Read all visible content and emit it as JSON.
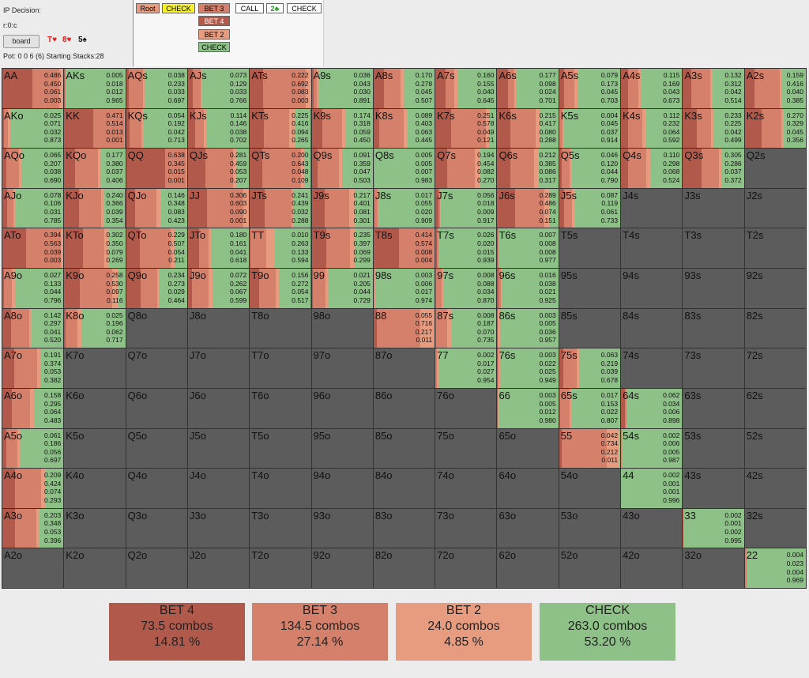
{
  "header": {
    "title": "IP Decision:",
    "node_path": "r:0:c",
    "board_button": "board",
    "cards": [
      {
        "label": "T♥",
        "color": "#e02020"
      },
      {
        "label": "8♥",
        "color": "#e02020"
      },
      {
        "label": "5♠",
        "color": "#111111"
      }
    ],
    "pot_info": "Pot: 0 0 6 (6) Starting Stacks:28"
  },
  "tree": {
    "root": "Root",
    "check1": "CHECK",
    "bet3": "BET 3",
    "bet4": "BET 4",
    "bet2": "BET 2",
    "check2": "CHECK",
    "call": "CALL",
    "card": "2♣",
    "check3": "CHECK"
  },
  "colors": {
    "bet4": "#b15a4b",
    "bet3": "#d5806b",
    "bet2": "#e89c7f",
    "check": "#8dc187",
    "empty": "#5c5c5c",
    "highlight": "#f6f12b"
  },
  "grid": {
    "ranks": [
      "A",
      "K",
      "Q",
      "J",
      "T",
      "9",
      "8",
      "7",
      "6",
      "5",
      "4",
      "3",
      "2"
    ],
    "cells": {
      "AA": [
        0.486,
        0.45,
        0.061,
        0.003
      ],
      "AKs": [
        0.005,
        0.018,
        0.012,
        0.965
      ],
      "AQs": [
        0.038,
        0.233,
        0.033,
        0.697
      ],
      "AJs": [
        0.073,
        0.129,
        0.033,
        0.766
      ],
      "ATs": [
        0.222,
        0.692,
        0.083,
        0.003
      ],
      "A9s": [
        0.036,
        0.043,
        0.03,
        0.891
      ],
      "A8s": [
        0.17,
        0.278,
        0.045,
        0.507
      ],
      "A7s": [
        0.16,
        0.155,
        0.04,
        0.645
      ],
      "A6s": [
        0.177,
        0.098,
        0.024,
        0.701
      ],
      "A5s": [
        0.079,
        0.173,
        0.045,
        0.703
      ],
      "A4s": [
        0.115,
        0.169,
        0.043,
        0.673
      ],
      "A3s": [
        0.132,
        0.312,
        0.042,
        0.514
      ],
      "A2s": [
        0.159,
        0.416,
        0.04,
        0.385
      ],
      "AKo": [
        0.025,
        0.071,
        0.032,
        0.873
      ],
      "KK": [
        0.471,
        0.514,
        0.013,
        0.001
      ],
      "KQs": [
        0.054,
        0.192,
        0.042,
        0.713
      ],
      "KJs": [
        0.114,
        0.146,
        0.038,
        0.702
      ],
      "KTs": [
        0.225,
        0.416,
        0.094,
        0.265
      ],
      "K9s": [
        0.174,
        0.318,
        0.059,
        0.45
      ],
      "K8s": [
        0.089,
        0.403,
        0.063,
        0.445
      ],
      "K7s": [
        0.251,
        0.578,
        0.049,
        0.121
      ],
      "K6s": [
        0.215,
        0.417,
        0.08,
        0.288
      ],
      "K5s": [
        0.004,
        0.045,
        0.037,
        0.914
      ],
      "K4s": [
        0.112,
        0.232,
        0.064,
        0.592
      ],
      "K3s": [
        0.233,
        0.225,
        0.042,
        0.499
      ],
      "K2s": [
        0.27,
        0.329,
        0.045,
        0.356
      ],
      "AQo": [
        0.065,
        0.207,
        0.038,
        0.69
      ],
      "KQo": [
        0.177,
        0.38,
        0.037,
        0.406
      ],
      "QQ": [
        0.638,
        0.345,
        0.015,
        0.001
      ],
      "QJs": [
        0.281,
        0.459,
        0.053,
        0.207
      ],
      "QTs": [
        0.2,
        0.643,
        0.048,
        0.109
      ],
      "Q9s": [
        0.091,
        0.359,
        0.047,
        0.503
      ],
      "Q8s": [
        0.005,
        0.005,
        0.007,
        0.983
      ],
      "Q7s": [
        0.194,
        0.454,
        0.082,
        0.27
      ],
      "Q6s": [
        0.212,
        0.385,
        0.086,
        0.317
      ],
      "Q5s": [
        0.046,
        0.12,
        0.044,
        0.79
      ],
      "Q4s": [
        0.11,
        0.298,
        0.068,
        0.524
      ],
      "Q3s": [
        0.305,
        0.286,
        0.037,
        0.372
      ],
      "Q2s": null,
      "AJo": [
        0.078,
        0.106,
        0.031,
        0.785
      ],
      "KJo": [
        0.24,
        0.366,
        0.039,
        0.354
      ],
      "QJo": [
        0.146,
        0.348,
        0.083,
        0.423
      ],
      "JJ": [
        0.306,
        0.603,
        0.09,
        0.001
      ],
      "JTs": [
        0.241,
        0.439,
        0.032,
        0.288
      ],
      "J9s": [
        0.217,
        0.401,
        0.081,
        0.301
      ],
      "J8s": [
        0.017,
        0.055,
        0.02,
        0.909
      ],
      "J7s": [
        0.056,
        0.018,
        0.009,
        0.917
      ],
      "J6s": [
        0.289,
        0.486,
        0.074,
        0.151
      ],
      "J5s": [
        0.087,
        0.119,
        0.061,
        0.733
      ],
      "J4s": null,
      "J3s": null,
      "J2s": null,
      "ATo": [
        0.394,
        0.563,
        0.039,
        0.003
      ],
      "KTo": [
        0.302,
        0.35,
        0.079,
        0.269
      ],
      "QTo": [
        0.229,
        0.507,
        0.054,
        0.211
      ],
      "JTo": [
        0.18,
        0.161,
        0.041,
        0.618
      ],
      "TT": [
        0.01,
        0.263,
        0.133,
        0.594
      ],
      "T9s": [
        0.235,
        0.397,
        0.069,
        0.299
      ],
      "T8s": [
        0.414,
        0.574,
        0.008,
        0.004
      ],
      "T7s": [
        0.026,
        0.02,
        0.015,
        0.939
      ],
      "T6s": [
        0.007,
        0.008,
        0.008,
        0.977
      ],
      "T5s": null,
      "T4s": null,
      "T3s": null,
      "T2s": null,
      "A9o": [
        0.027,
        0.133,
        0.044,
        0.796
      ],
      "K9o": [
        0.258,
        0.53,
        0.097,
        0.116
      ],
      "Q9o": [
        0.234,
        0.273,
        0.029,
        0.464
      ],
      "J9o": [
        0.072,
        0.262,
        0.067,
        0.599
      ],
      "T9o": [
        0.156,
        0.272,
        0.054,
        0.517
      ],
      "99": [
        0.021,
        0.205,
        0.044,
        0.729
      ],
      "98s": [
        0.003,
        0.006,
        0.017,
        0.974
      ],
      "97s": [
        0.008,
        0.088,
        0.034,
        0.87
      ],
      "96s": [
        0.016,
        0.038,
        0.021,
        0.925
      ],
      "95s": null,
      "94s": null,
      "93s": null,
      "92s": null,
      "A8o": [
        0.142,
        0.297,
        0.041,
        0.52
      ],
      "K8o": [
        0.025,
        0.196,
        0.062,
        0.717
      ],
      "Q8o": null,
      "J8o": null,
      "T8o": null,
      "98o": null,
      "88": [
        0.055,
        0.716,
        0.217,
        0.011
      ],
      "87s": [
        0.008,
        0.187,
        0.07,
        0.735
      ],
      "86s": [
        0.003,
        0.005,
        0.036,
        0.957
      ],
      "85s": null,
      "84s": null,
      "83s": null,
      "82s": null,
      "A7o": [
        0.191,
        0.374,
        0.053,
        0.382
      ],
      "K7o": null,
      "Q7o": null,
      "J7o": null,
      "T7o": null,
      "97o": null,
      "87o": null,
      "77": [
        0.002,
        0.017,
        0.027,
        0.954
      ],
      "76s": [
        0.003,
        0.022,
        0.025,
        0.949
      ],
      "75s": [
        0.063,
        0.219,
        0.039,
        0.678
      ],
      "74s": null,
      "73s": null,
      "72s": null,
      "A6o": [
        0.158,
        0.295,
        0.064,
        0.483
      ],
      "K6o": null,
      "Q6o": null,
      "J6o": null,
      "T6o": null,
      "96o": null,
      "86o": null,
      "76o": null,
      "66": [
        0.003,
        0.005,
        0.012,
        0.98
      ],
      "65s": [
        0.017,
        0.153,
        0.022,
        0.807
      ],
      "64s": [
        0.062,
        0.034,
        0.006,
        0.898
      ],
      "63s": null,
      "62s": null,
      "A5o": [
        0.061,
        0.186,
        0.056,
        0.697
      ],
      "K5o": null,
      "Q5o": null,
      "J5o": null,
      "T5o": null,
      "95o": null,
      "85o": null,
      "75o": null,
      "65o": null,
      "55": [
        0.042,
        0.734,
        0.212,
        0.011
      ],
      "54s": [
        0.002,
        0.006,
        0.005,
        0.987
      ],
      "53s": null,
      "52s": null,
      "A4o": [
        0.209,
        0.424,
        0.074,
        0.293
      ],
      "K4o": null,
      "Q4o": null,
      "J4o": null,
      "T4o": null,
      "94o": null,
      "84o": null,
      "74o": null,
      "64o": null,
      "54o": null,
      "44": [
        0.002,
        0.001,
        0.001,
        0.996
      ],
      "43s": null,
      "42s": null,
      "A3o": [
        0.203,
        0.348,
        0.053,
        0.396
      ],
      "K3o": null,
      "Q3o": null,
      "J3o": null,
      "T3o": null,
      "93o": null,
      "83o": null,
      "73o": null,
      "63o": null,
      "53o": null,
      "43o": null,
      "33": [
        0.002,
        0.001,
        0.002,
        0.995
      ],
      "32s": null,
      "A2o": null,
      "K2o": null,
      "Q2o": null,
      "J2o": null,
      "T2o": null,
      "92o": null,
      "82o": null,
      "72o": null,
      "62o": null,
      "52o": null,
      "42o": null,
      "32o": null,
      "22": [
        0.004,
        0.023,
        0.004,
        0.969
      ]
    }
  },
  "legend": [
    {
      "action": "BET 4",
      "combos": "73.5 combos",
      "pct": "14.81 %"
    },
    {
      "action": "BET 3",
      "combos": "134.5 combos",
      "pct": "27.14 %"
    },
    {
      "action": "BET 2",
      "combos": "24.0 combos",
      "pct": "4.85 %"
    },
    {
      "action": "CHECK",
      "combos": "263.0 combos",
      "pct": "53.20 %"
    }
  ]
}
